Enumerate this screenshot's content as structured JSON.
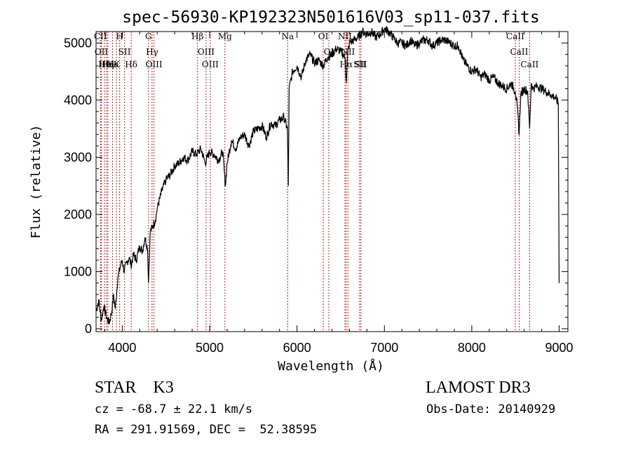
{
  "chart_data": {
    "type": "line",
    "title": "spec-56930-KP192323N501616V03_sp11-037.fits",
    "xlabel": "Wavelength (Å)",
    "ylabel": "Flux (relative)",
    "xlim": [
      3700,
      9100
    ],
    "ylim": [
      -50,
      5200
    ],
    "xticks": [
      4000,
      5000,
      6000,
      7000,
      8000,
      9000
    ],
    "yticks": [
      0,
      1000,
      2000,
      3000,
      4000,
      5000
    ],
    "grid": false,
    "series": [
      {
        "values_x": [
          3700,
          3730,
          3760,
          3790,
          3820,
          3850,
          3880,
          3900,
          3920,
          3950,
          3980,
          4000,
          4020,
          4050,
          4080,
          4100,
          4130,
          4160,
          4200,
          4230,
          4260,
          4290,
          4300,
          4320,
          4350,
          4380,
          4400,
          4450,
          4500,
          4550,
          4600,
          4650,
          4700,
          4750,
          4800,
          4850,
          4900,
          4950,
          5000,
          5050,
          5100,
          5150,
          5180,
          5200,
          5250,
          5300,
          5350,
          5400,
          5450,
          5500,
          5550,
          5600,
          5650,
          5700,
          5750,
          5800,
          5850,
          5890,
          5900,
          5910,
          5950,
          6000,
          6050,
          6100,
          6150,
          6200,
          6250,
          6300,
          6350,
          6400,
          6450,
          6500,
          6550,
          6563,
          6580,
          6600,
          6650,
          6700,
          6750,
          6800,
          6850,
          6900,
          6950,
          7000,
          7050,
          7100,
          7150,
          7200,
          7250,
          7300,
          7350,
          7400,
          7450,
          7500,
          7550,
          7600,
          7650,
          7700,
          7750,
          7800,
          7850,
          7900,
          7950,
          8000,
          8050,
          8100,
          8150,
          8200,
          8250,
          8300,
          8350,
          8400,
          8450,
          8498,
          8520,
          8542,
          8560,
          8600,
          8640,
          8662,
          8680,
          8700,
          8750,
          8800,
          8850,
          8900,
          8950,
          8990,
          9000
        ],
        "values_y": [
          300,
          500,
          150,
          400,
          200,
          100,
          300,
          600,
          350,
          900,
          1100,
          1200,
          1000,
          1150,
          1250,
          1100,
          1300,
          1200,
          1450,
          1350,
          1600,
          1400,
          800,
          1700,
          1800,
          1900,
          2100,
          2400,
          2600,
          2700,
          2850,
          2900,
          3000,
          2950,
          3100,
          3050,
          3150,
          2900,
          3100,
          3050,
          2950,
          3100,
          2500,
          2900,
          3300,
          3150,
          3350,
          3400,
          3200,
          3450,
          3500,
          3550,
          3350,
          3600,
          3550,
          3650,
          3700,
          3500,
          2500,
          4200,
          4500,
          4600,
          4400,
          4700,
          4800,
          4650,
          4700,
          4600,
          4750,
          4800,
          4900,
          4850,
          4750,
          4300,
          4800,
          5000,
          5050,
          5100,
          5200,
          5150,
          5200,
          5100,
          5150,
          5250,
          5200,
          5100,
          5000,
          5000,
          4950,
          5050,
          4950,
          5000,
          5050,
          5050,
          4950,
          5000,
          5050,
          5050,
          5000,
          4950,
          4950,
          4700,
          4600,
          4500,
          4550,
          4400,
          4450,
          4350,
          4400,
          4300,
          4250,
          4200,
          4300,
          4150,
          3900,
          3400,
          4100,
          4200,
          4150,
          3500,
          4300,
          4200,
          4250,
          4200,
          4150,
          4100,
          4050,
          3950,
          800
        ]
      }
    ],
    "lines": [
      {
        "x": 3750,
        "label": "CII"
      },
      {
        "x": 3760,
        "label": "OII"
      },
      {
        "x": 3797,
        "label": "Hθ"
      },
      {
        "x": 3820,
        "label": "HeI"
      },
      {
        "x": 3835,
        "label": "Hη"
      },
      {
        "x": 3889,
        "label": "He"
      },
      {
        "x": 3934,
        "label": "K"
      },
      {
        "x": 3970,
        "label": "H"
      },
      {
        "x": 4026,
        "label": "SII"
      },
      {
        "x": 4102,
        "label": "Hδ"
      },
      {
        "x": 4300,
        "label": "G"
      },
      {
        "x": 4341,
        "label": "Hγ"
      },
      {
        "x": 4363,
        "label": "OIII"
      },
      {
        "x": 4861,
        "label": "Hβ"
      },
      {
        "x": 4959,
        "label": "OIII"
      },
      {
        "x": 5007,
        "label": "OIII"
      },
      {
        "x": 5175,
        "label": "Mg"
      },
      {
        "x": 5893,
        "label": "Na"
      },
      {
        "x": 6300,
        "label": "OI"
      },
      {
        "x": 6364,
        "label": "OI"
      },
      {
        "x": 6548,
        "label": "NII"
      },
      {
        "x": 6563,
        "label": "Hα"
      },
      {
        "x": 6583,
        "label": "NII"
      },
      {
        "x": 6716,
        "label": "SII"
      },
      {
        "x": 6731,
        "label": "SII"
      },
      {
        "x": 8498,
        "label": "CaII"
      },
      {
        "x": 8542,
        "label": "CaII"
      },
      {
        "x": 8662,
        "label": "CaII"
      }
    ],
    "colors": {
      "spectrum": "#000000",
      "lines": "#b22222"
    }
  },
  "info": {
    "class_text": "STAR    K3",
    "survey": "LAMOST DR3",
    "cz": "cz = -68.7 ± 22.1 km/s",
    "obs_date": "Obs-Date: 20140929",
    "coords": "RA = 291.91569, DEC =  52.38595"
  }
}
